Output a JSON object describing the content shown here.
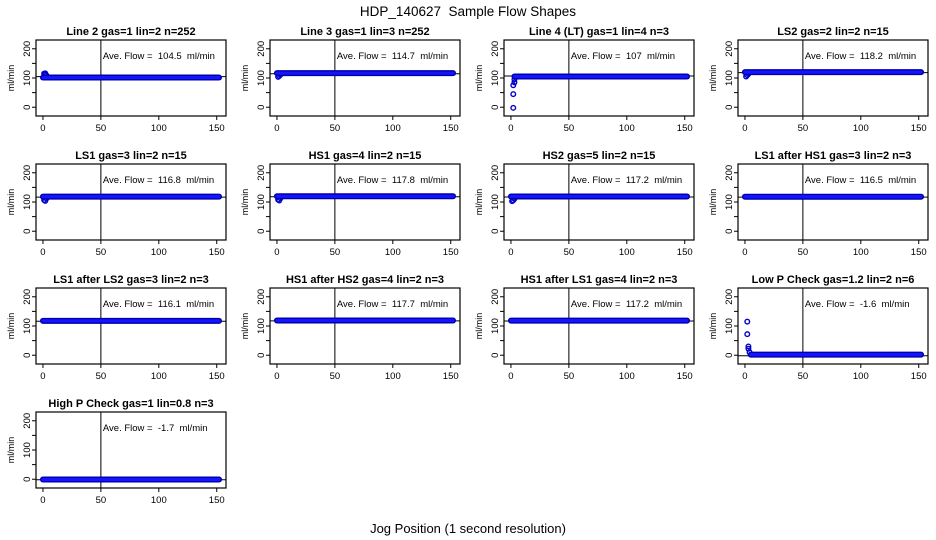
{
  "page": {
    "title": "HDP_140627  Sample Flow Shapes",
    "xlabel": "Jog Position (1 second resolution)"
  },
  "chart_data": {
    "type": "scatter",
    "title": "HDP_140627  Sample Flow Shapes",
    "xlabel": "Jog Position (1 second resolution)",
    "ylabel": "ml/min",
    "layout": {
      "rows": 4,
      "cols": 4,
      "panel_count": 13,
      "grid": false,
      "vline_x": 50
    },
    "xlim": [
      -6,
      158
    ],
    "ylim": [
      -30,
      230
    ],
    "x_ticks": [
      0,
      50,
      100,
      150
    ],
    "y_ticks": [
      0,
      100,
      200
    ],
    "y_minor_ticks": [
      50,
      150
    ],
    "marker_color_bright": "#1414ff",
    "marker_color_dark": "#0000a8",
    "marker_outline": "#0000cc",
    "panels": [
      {
        "title": "Line 2 gas=1 lin=2 n=252",
        "ave_flow": 104.5,
        "ave_label": "Ave. Flow =  104.5  ml/min",
        "band_y": 101.5,
        "band_x": [
          0,
          152
        ],
        "transient_points": [
          [
            1,
            115
          ],
          [
            2,
            116
          ],
          [
            2,
            112
          ],
          [
            3,
            109
          ]
        ]
      },
      {
        "title": "Line 3 gas=1 lin=3 n=252",
        "ave_flow": 114.7,
        "ave_label": "Ave. Flow =  114.7  ml/min",
        "band_y": 116.5,
        "band_x": [
          0,
          152
        ],
        "transient_points": [
          [
            1,
            104
          ],
          [
            2,
            107
          ],
          [
            3,
            111
          ]
        ]
      },
      {
        "title": "Line 4 (LT) gas=1 lin=4 n=3",
        "ave_flow": 107,
        "ave_label": "Ave. Flow =  107  ml/min",
        "band_y": 105,
        "band_x": [
          3,
          152
        ],
        "transient_points": [
          [
            2,
            -2
          ],
          [
            2,
            45
          ],
          [
            2,
            75
          ],
          [
            3,
            85
          ],
          [
            3,
            95
          ]
        ]
      },
      {
        "title": "LS2 gas=2 lin=2 n=15",
        "ave_flow": 118.2,
        "ave_label": "Ave. Flow =  118.2  ml/min",
        "band_y": 120,
        "band_x": [
          0,
          152
        ],
        "transient_points": [
          [
            1,
            105
          ],
          [
            2,
            110
          ],
          [
            3,
            114
          ]
        ]
      },
      {
        "title": "LS1 gas=3 lin=2 n=15",
        "ave_flow": 116.8,
        "ave_label": "Ave. Flow =  116.8  ml/min",
        "band_y": 118.5,
        "band_x": [
          0,
          152
        ],
        "transient_points": [
          [
            1,
            107
          ],
          [
            2,
            104
          ],
          [
            3,
            112
          ]
        ]
      },
      {
        "title": "HS1 gas=4 lin=2 n=15",
        "ave_flow": 117.8,
        "ave_label": "Ave. Flow =  117.8  ml/min",
        "band_y": 119.5,
        "band_x": [
          0,
          152
        ],
        "transient_points": [
          [
            1,
            108
          ],
          [
            2,
            105
          ],
          [
            3,
            113
          ]
        ]
      },
      {
        "title": "HS2 gas=5 lin=2 n=15",
        "ave_flow": 117.2,
        "ave_label": "Ave. Flow =  117.2  ml/min",
        "band_y": 119,
        "band_x": [
          0,
          152
        ],
        "transient_points": [
          [
            1,
            103
          ],
          [
            2,
            106
          ],
          [
            3,
            111
          ]
        ]
      },
      {
        "title": "LS1 after HS1 gas=3 lin=2 n=3",
        "ave_flow": 116.5,
        "ave_label": "Ave. Flow =  116.5  ml/min",
        "band_y": 118,
        "band_x": [
          0,
          152
        ],
        "transient_points": []
      },
      {
        "title": "LS1 after LS2 gas=3 lin=2 n=3",
        "ave_flow": 116.1,
        "ave_label": "Ave. Flow =  116.1  ml/min",
        "band_y": 117.5,
        "band_x": [
          0,
          152
        ],
        "transient_points": []
      },
      {
        "title": "HS1 after HS2 gas=4 lin=2 n=3",
        "ave_flow": 117.7,
        "ave_label": "Ave. Flow =  117.7  ml/min",
        "band_y": 119,
        "band_x": [
          0,
          152
        ],
        "transient_points": []
      },
      {
        "title": "HS1 after LS1 gas=4 lin=2 n=3",
        "ave_flow": 117.2,
        "ave_label": "Ave. Flow =  117.2  ml/min",
        "band_y": 118.5,
        "band_x": [
          0,
          152
        ],
        "transient_points": []
      },
      {
        "title": "Low P Check gas=1.2 lin=2 n=6",
        "ave_flow": -1.6,
        "ave_label": "Ave. Flow =  -1.6  ml/min",
        "band_y": 2,
        "band_x": [
          5,
          152
        ],
        "transient_points": [
          [
            2,
            115
          ],
          [
            2,
            72
          ],
          [
            3,
            30
          ],
          [
            3,
            22
          ],
          [
            4,
            10
          ]
        ]
      },
      {
        "title": "High P Check gas=1 lin=0.8 n=3",
        "ave_flow": -1.7,
        "ave_label": "Ave. Flow =  -1.7  ml/min",
        "band_y": -1,
        "band_x": [
          0,
          152
        ],
        "transient_points": []
      }
    ]
  }
}
